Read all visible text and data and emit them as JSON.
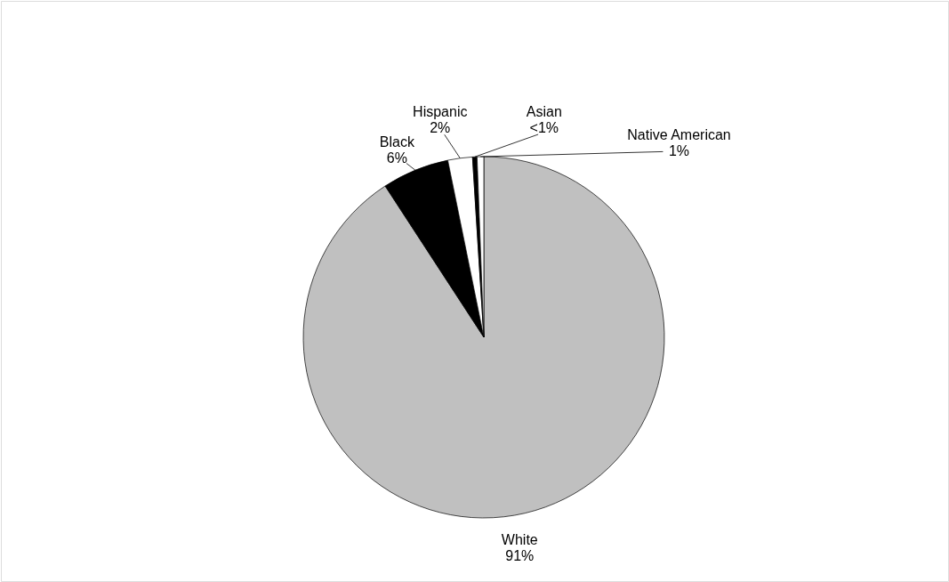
{
  "chart_data": {
    "type": "pie",
    "categories": [
      "White",
      "Black",
      "Hispanic",
      "Asian",
      "Native American"
    ],
    "values": [
      90.8,
      6,
      2.2,
      0.4,
      0.6
    ],
    "value_labels": [
      "91%",
      "6%",
      "2%",
      "<1%",
      "1%"
    ],
    "colors": [
      "#c0c0c0",
      "#000000",
      "#ffffff",
      "#000000",
      "#ffffff"
    ]
  }
}
